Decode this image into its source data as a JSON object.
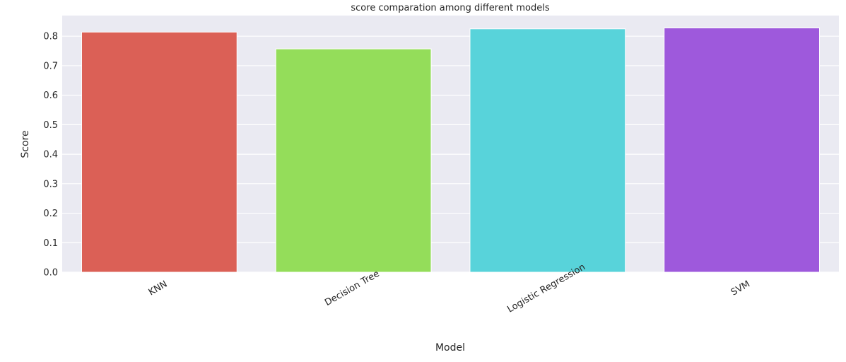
{
  "chart_data": {
    "type": "bar",
    "title": "score comparation among different models",
    "xlabel": "Model",
    "ylabel": "Score",
    "categories": [
      "KNN",
      "Decision Tree",
      "Logistic Regression",
      "SVM"
    ],
    "values": [
      0.814,
      0.757,
      0.825,
      0.828
    ],
    "colors": [
      "#db6056",
      "#94dd5a",
      "#58d3da",
      "#9e59dc"
    ],
    "ylim": [
      0,
      0.87
    ],
    "yticks": [
      "0.0",
      "0.1",
      "0.2",
      "0.3",
      "0.4",
      "0.5",
      "0.6",
      "0.7",
      "0.8"
    ],
    "grid": true,
    "background": "#eaeaf2"
  }
}
